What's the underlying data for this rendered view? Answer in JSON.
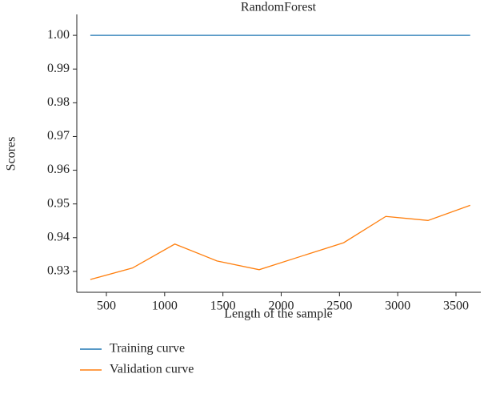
{
  "chart_data": {
    "type": "line",
    "title": "RandomForest",
    "x_label": "Length of the sample",
    "y_label": "Scores",
    "x": [
      362,
      724,
      1087,
      1449,
      1811,
      2173,
      2536,
      2898,
      3260,
      3622
    ],
    "series": [
      {
        "name": "Training curve",
        "color": "#1f77b4",
        "values": [
          1.0,
          1.0,
          1.0,
          1.0,
          1.0,
          1.0,
          1.0,
          1.0,
          1.0,
          1.0
        ]
      },
      {
        "name": "Validation curve",
        "color": "#ff7f0e",
        "values": [
          0.9276,
          0.931,
          0.9381,
          0.9331,
          0.9305,
          0.9345,
          0.9385,
          0.9463,
          0.9451,
          0.9496
        ]
      }
    ],
    "xlim": [
      246,
      3713
    ],
    "xticks": [
      500,
      1000,
      1500,
      2000,
      2500,
      3000,
      3500
    ],
    "ylim": [
      0.9238,
      1.0062
    ],
    "yticks": [
      {
        "value": 0.93,
        "label": "0.93"
      },
      {
        "value": 0.94,
        "label": "0.94"
      },
      {
        "value": 0.95,
        "label": "0.95"
      },
      {
        "value": 0.96,
        "label": "0.96"
      },
      {
        "value": 0.97,
        "label": "0.97"
      },
      {
        "value": 0.98,
        "label": "0.98"
      },
      {
        "value": 0.99,
        "label": "0.99"
      },
      {
        "value": 1.0,
        "label": "1.00"
      }
    ],
    "legend": "bottom-left"
  }
}
